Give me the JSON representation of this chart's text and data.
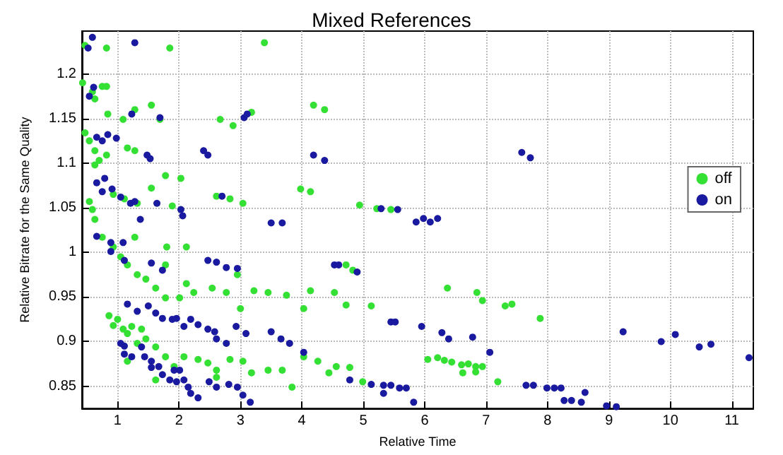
{
  "chart_data": {
    "type": "scatter",
    "title": "Mixed References",
    "xlabel": "Relative Time",
    "ylabel": "Relative Bitrate for the Same Quality",
    "xlim": [
      0.42,
      11.35
    ],
    "ylim": [
      0.825,
      1.248
    ],
    "xticks": [
      1,
      2,
      3,
      4,
      5,
      6,
      7,
      8,
      9,
      10,
      11
    ],
    "yticks": [
      0.85,
      0.9,
      0.95,
      1,
      1.05,
      1.1,
      1.15,
      1.2
    ],
    "grid": true,
    "legend": "right",
    "marker": "circle",
    "series": [
      {
        "name": "off",
        "color": "#33e033",
        "x": [
          0.47,
          0.82,
          1.85,
          3.39,
          0.43,
          0.59,
          0.63,
          0.75,
          0.82,
          0.84,
          1.09,
          1.28,
          1.55,
          1.69,
          2.67,
          2.88,
          3.18,
          4.19,
          4.37,
          0.47,
          0.54,
          0.63,
          0.7,
          0.63,
          0.82,
          1.16,
          1.28,
          1.78,
          2.03,
          1.55,
          0.54,
          0.59,
          0.63,
          0.93,
          1.11,
          1.32,
          1.89,
          2.61,
          2.83,
          3.04,
          3.98,
          4.14,
          4.94,
          5.22,
          5.45,
          0.75,
          0.93,
          1.05,
          1.16,
          1.32,
          1.46,
          1.62,
          1.78,
          1.28,
          1.8,
          2.12,
          1.78,
          2.12,
          2.24,
          2.01,
          2.54,
          2.77,
          2.95,
          3.0,
          3.22,
          3.45,
          3.75,
          4.14,
          4.03,
          4.53,
          4.72,
          5.13,
          0.86,
          0.93,
          1.0,
          1.09,
          1.16,
          1.23,
          1.39,
          1.32,
          1.46,
          1.62,
          1.78,
          1.92,
          1.16,
          1.62,
          2.08,
          2.31,
          2.47,
          2.61,
          2.61,
          2.83,
          3.04,
          3.18,
          3.45,
          3.68,
          3.84,
          4.03,
          4.26,
          4.44,
          4.56,
          4.78,
          4.99,
          4.72,
          4.83,
          6.37,
          6.85,
          6.94,
          7.31,
          7.42,
          7.88,
          6.05,
          6.21,
          6.32,
          6.44,
          6.6,
          6.71,
          6.83,
          6.94,
          6.62,
          6.83,
          7.19
        ],
        "values": [
          1.232,
          1.229,
          1.229,
          1.235,
          1.19,
          1.18,
          1.172,
          1.186,
          1.186,
          1.155,
          1.149,
          1.16,
          1.165,
          1.149,
          1.149,
          1.142,
          1.157,
          1.165,
          1.16,
          1.134,
          1.125,
          1.114,
          1.103,
          1.098,
          1.109,
          1.117,
          1.114,
          1.086,
          1.083,
          1.072,
          1.057,
          1.048,
          1.037,
          1.065,
          1.06,
          1.055,
          1.052,
          1.063,
          1.06,
          1.055,
          1.071,
          1.068,
          1.053,
          1.049,
          1.048,
          1.017,
          1.006,
          0.995,
          0.986,
          0.975,
          0.97,
          0.96,
          0.949,
          1.017,
          1.006,
          1.006,
          0.986,
          0.965,
          0.955,
          0.949,
          0.96,
          0.955,
          0.975,
          0.937,
          0.957,
          0.955,
          0.952,
          0.957,
          0.937,
          0.955,
          0.941,
          0.94,
          0.929,
          0.918,
          0.925,
          0.914,
          0.909,
          0.917,
          0.914,
          0.898,
          0.903,
          0.894,
          0.883,
          0.872,
          0.878,
          0.857,
          0.883,
          0.88,
          0.876,
          0.868,
          0.86,
          0.88,
          0.878,
          0.865,
          0.868,
          0.868,
          0.849,
          0.883,
          0.878,
          0.865,
          0.872,
          0.871,
          0.855,
          0.986,
          0.98,
          0.96,
          0.955,
          0.946,
          0.94,
          0.942,
          0.926,
          0.88,
          0.882,
          0.879,
          0.877,
          0.874,
          0.875,
          0.872,
          0.872,
          0.865,
          0.866,
          0.855
        ]
      },
      {
        "name": "on",
        "color": "#1a1aa0",
        "x": [
          0.59,
          0.52,
          1.28,
          0.61,
          0.54,
          1.23,
          1.69,
          3.06,
          3.11,
          0.66,
          0.75,
          0.84,
          0.98,
          1.48,
          1.53,
          2.4,
          2.47,
          4.19,
          4.37,
          0.66,
          0.79,
          0.75,
          0.91,
          1.05,
          1.21,
          1.28,
          1.37,
          1.64,
          2.03,
          2.06,
          2.7,
          3.5,
          3.68,
          5.29,
          7.58,
          7.72,
          5.56,
          5.86,
          5.98,
          6.09,
          6.21,
          0.66,
          0.89,
          0.89,
          1.09,
          1.11,
          1.55,
          1.73,
          2.47,
          2.61,
          2.77,
          2.95,
          1.16,
          1.32,
          1.5,
          1.62,
          1.73,
          1.89,
          1.96,
          2.08,
          2.19,
          2.31,
          2.47,
          2.58,
          2.61,
          2.77,
          2.93,
          3.09,
          3.5,
          3.66,
          3.8,
          4.03,
          1.05,
          1.11,
          1.11,
          1.23,
          1.39,
          1.44,
          1.55,
          1.67,
          1.55,
          1.73,
          1.85,
          1.92,
          2.01,
          1.96,
          2.08,
          2.15,
          2.19,
          2.31,
          2.49,
          2.61,
          2.81,
          2.95,
          3.04,
          3.16,
          4.78,
          5.13,
          4.53,
          4.6,
          4.9,
          5.45,
          5.52,
          5.95,
          6.28,
          6.39,
          6.78,
          7.06,
          9.23,
          9.85,
          10.08,
          10.47,
          10.66,
          11.28,
          5.33,
          5.45,
          5.59,
          5.7,
          5.82,
          5.33,
          7.65,
          7.77,
          7.99,
          8.11,
          8.22,
          8.27,
          8.39,
          8.55,
          8.61,
          8.96,
          9.12
        ],
        "values": [
          1.241,
          1.229,
          1.235,
          1.185,
          1.175,
          1.155,
          1.151,
          1.151,
          1.155,
          1.129,
          1.125,
          1.132,
          1.128,
          1.109,
          1.105,
          1.114,
          1.109,
          1.109,
          1.103,
          1.078,
          1.083,
          1.068,
          1.071,
          1.062,
          1.055,
          1.057,
          1.037,
          1.055,
          1.048,
          1.041,
          1.063,
          1.033,
          1.033,
          1.049,
          1.112,
          1.106,
          1.048,
          1.034,
          1.038,
          1.034,
          1.038,
          1.018,
          1.011,
          1.001,
          1.011,
          0.991,
          0.988,
          0.98,
          0.991,
          0.989,
          0.983,
          0.982,
          0.942,
          0.934,
          0.94,
          0.932,
          0.926,
          0.925,
          0.926,
          0.917,
          0.925,
          0.919,
          0.914,
          0.911,
          0.903,
          0.898,
          0.917,
          0.909,
          0.911,
          0.903,
          0.898,
          0.888,
          0.898,
          0.895,
          0.886,
          0.883,
          0.894,
          0.883,
          0.878,
          0.872,
          0.871,
          0.863,
          0.857,
          0.868,
          0.868,
          0.855,
          0.857,
          0.849,
          0.842,
          0.837,
          0.855,
          0.849,
          0.852,
          0.849,
          0.84,
          0.832,
          0.857,
          0.852,
          0.986,
          0.986,
          0.978,
          0.922,
          0.922,
          0.917,
          0.91,
          0.903,
          0.905,
          0.888,
          0.911,
          0.9,
          0.908,
          0.894,
          0.897,
          0.882,
          0.851,
          0.851,
          0.848,
          0.848,
          0.832,
          0.842,
          0.851,
          0.851,
          0.848,
          0.848,
          0.848,
          0.834,
          0.834,
          0.832,
          0.843,
          0.828,
          0.827
        ]
      }
    ]
  }
}
